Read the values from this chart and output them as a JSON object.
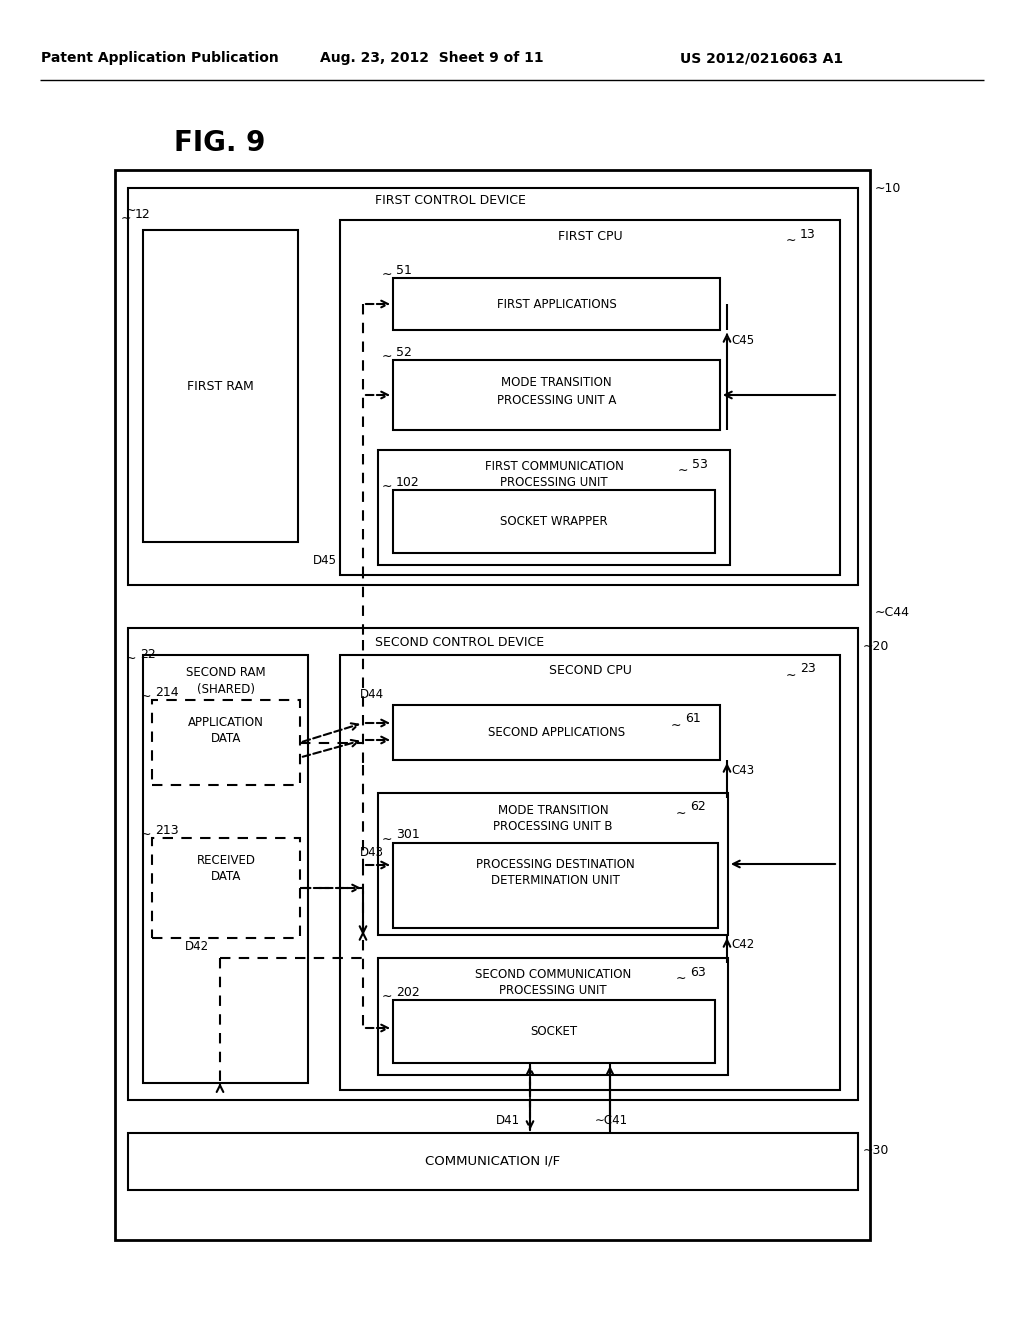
{
  "header_left": "Patent Application Publication",
  "header_mid": "Aug. 23, 2012  Sheet 9 of 11",
  "header_right": "US 2012/0216063 A1",
  "fig_label": "FIG. 9",
  "bg_color": "#ffffff"
}
